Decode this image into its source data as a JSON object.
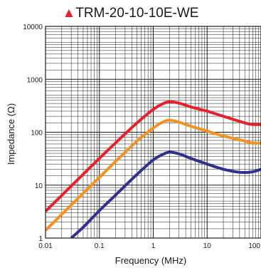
{
  "chart_data": {
    "type": "line",
    "title_marker": "▲",
    "title": "TRM-20-10-10E-WE",
    "xlabel": "Frequency (MHz)",
    "ylabel": "Impedance (Ω)",
    "x_scale": "log",
    "y_scale": "log",
    "xlim": [
      0.01,
      100
    ],
    "ylim": [
      1,
      10000
    ],
    "x_ticks": [
      {
        "value": 0.01,
        "label": "0.01"
      },
      {
        "value": 0.1,
        "label": "0.1"
      },
      {
        "value": 1,
        "label": "1"
      },
      {
        "value": 10,
        "label": "10"
      },
      {
        "value": 100,
        "label": "100"
      }
    ],
    "y_ticks": [
      {
        "value": 1,
        "label": "1"
      },
      {
        "value": 10,
        "label": "10"
      },
      {
        "value": 100,
        "label": "100"
      },
      {
        "value": 1000,
        "label": "1000"
      },
      {
        "value": 10000,
        "label": "10000"
      }
    ],
    "grid": true,
    "legend": "none",
    "series": [
      {
        "color": "#e8202a",
        "points": [
          [
            0.01,
            3.2
          ],
          [
            0.02,
            6.4
          ],
          [
            0.05,
            16
          ],
          [
            0.1,
            32
          ],
          [
            0.2,
            63
          ],
          [
            0.5,
            150
          ],
          [
            1,
            270
          ],
          [
            1.5,
            345
          ],
          [
            2,
            375
          ],
          [
            3,
            355
          ],
          [
            5,
            300
          ],
          [
            10,
            250
          ],
          [
            20,
            200
          ],
          [
            50,
            150
          ],
          [
            70,
            140
          ],
          [
            100,
            140
          ]
        ]
      },
      {
        "color": "#f5911e",
        "points": [
          [
            0.01,
            1.4
          ],
          [
            0.02,
            2.8
          ],
          [
            0.05,
            7
          ],
          [
            0.1,
            14
          ],
          [
            0.2,
            28
          ],
          [
            0.5,
            68
          ],
          [
            1,
            120
          ],
          [
            1.5,
            155
          ],
          [
            2,
            168
          ],
          [
            3,
            155
          ],
          [
            5,
            130
          ],
          [
            10,
            105
          ],
          [
            20,
            85
          ],
          [
            50,
            68
          ],
          [
            70,
            62
          ],
          [
            100,
            62
          ]
        ]
      },
      {
        "color": "#2e3192",
        "points": [
          [
            0.03,
            1
          ],
          [
            0.05,
            1.6
          ],
          [
            0.1,
            3.3
          ],
          [
            0.2,
            6.5
          ],
          [
            0.5,
            16
          ],
          [
            1,
            30
          ],
          [
            1.5,
            38
          ],
          [
            2,
            42
          ],
          [
            3,
            39
          ],
          [
            5,
            32
          ],
          [
            10,
            25
          ],
          [
            20,
            20
          ],
          [
            40,
            17.5
          ],
          [
            60,
            17.5
          ],
          [
            80,
            18.5
          ],
          [
            100,
            20
          ]
        ]
      }
    ]
  }
}
